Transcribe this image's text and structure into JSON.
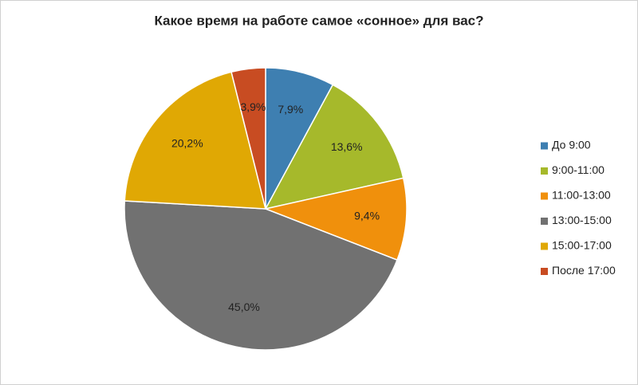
{
  "chart_data": {
    "type": "pie",
    "title": "Какое время на работе самое «сонное» для вас?",
    "categories": [
      "До 9:00",
      "9:00-11:00",
      "11:00-13:00",
      "13:00-15:00",
      "15:00-17:00",
      "После 17:00"
    ],
    "values": [
      7.9,
      13.6,
      9.4,
      45.0,
      20.2,
      3.9
    ],
    "value_labels": [
      "7,9%",
      "13,6%",
      "9,4%",
      "45,0%",
      "20,2%",
      "3,9%"
    ],
    "colors": [
      "#3e7fb1",
      "#a6b92b",
      "#f0900c",
      "#717171",
      "#e0a804",
      "#c84c22"
    ],
    "legend": "right"
  }
}
